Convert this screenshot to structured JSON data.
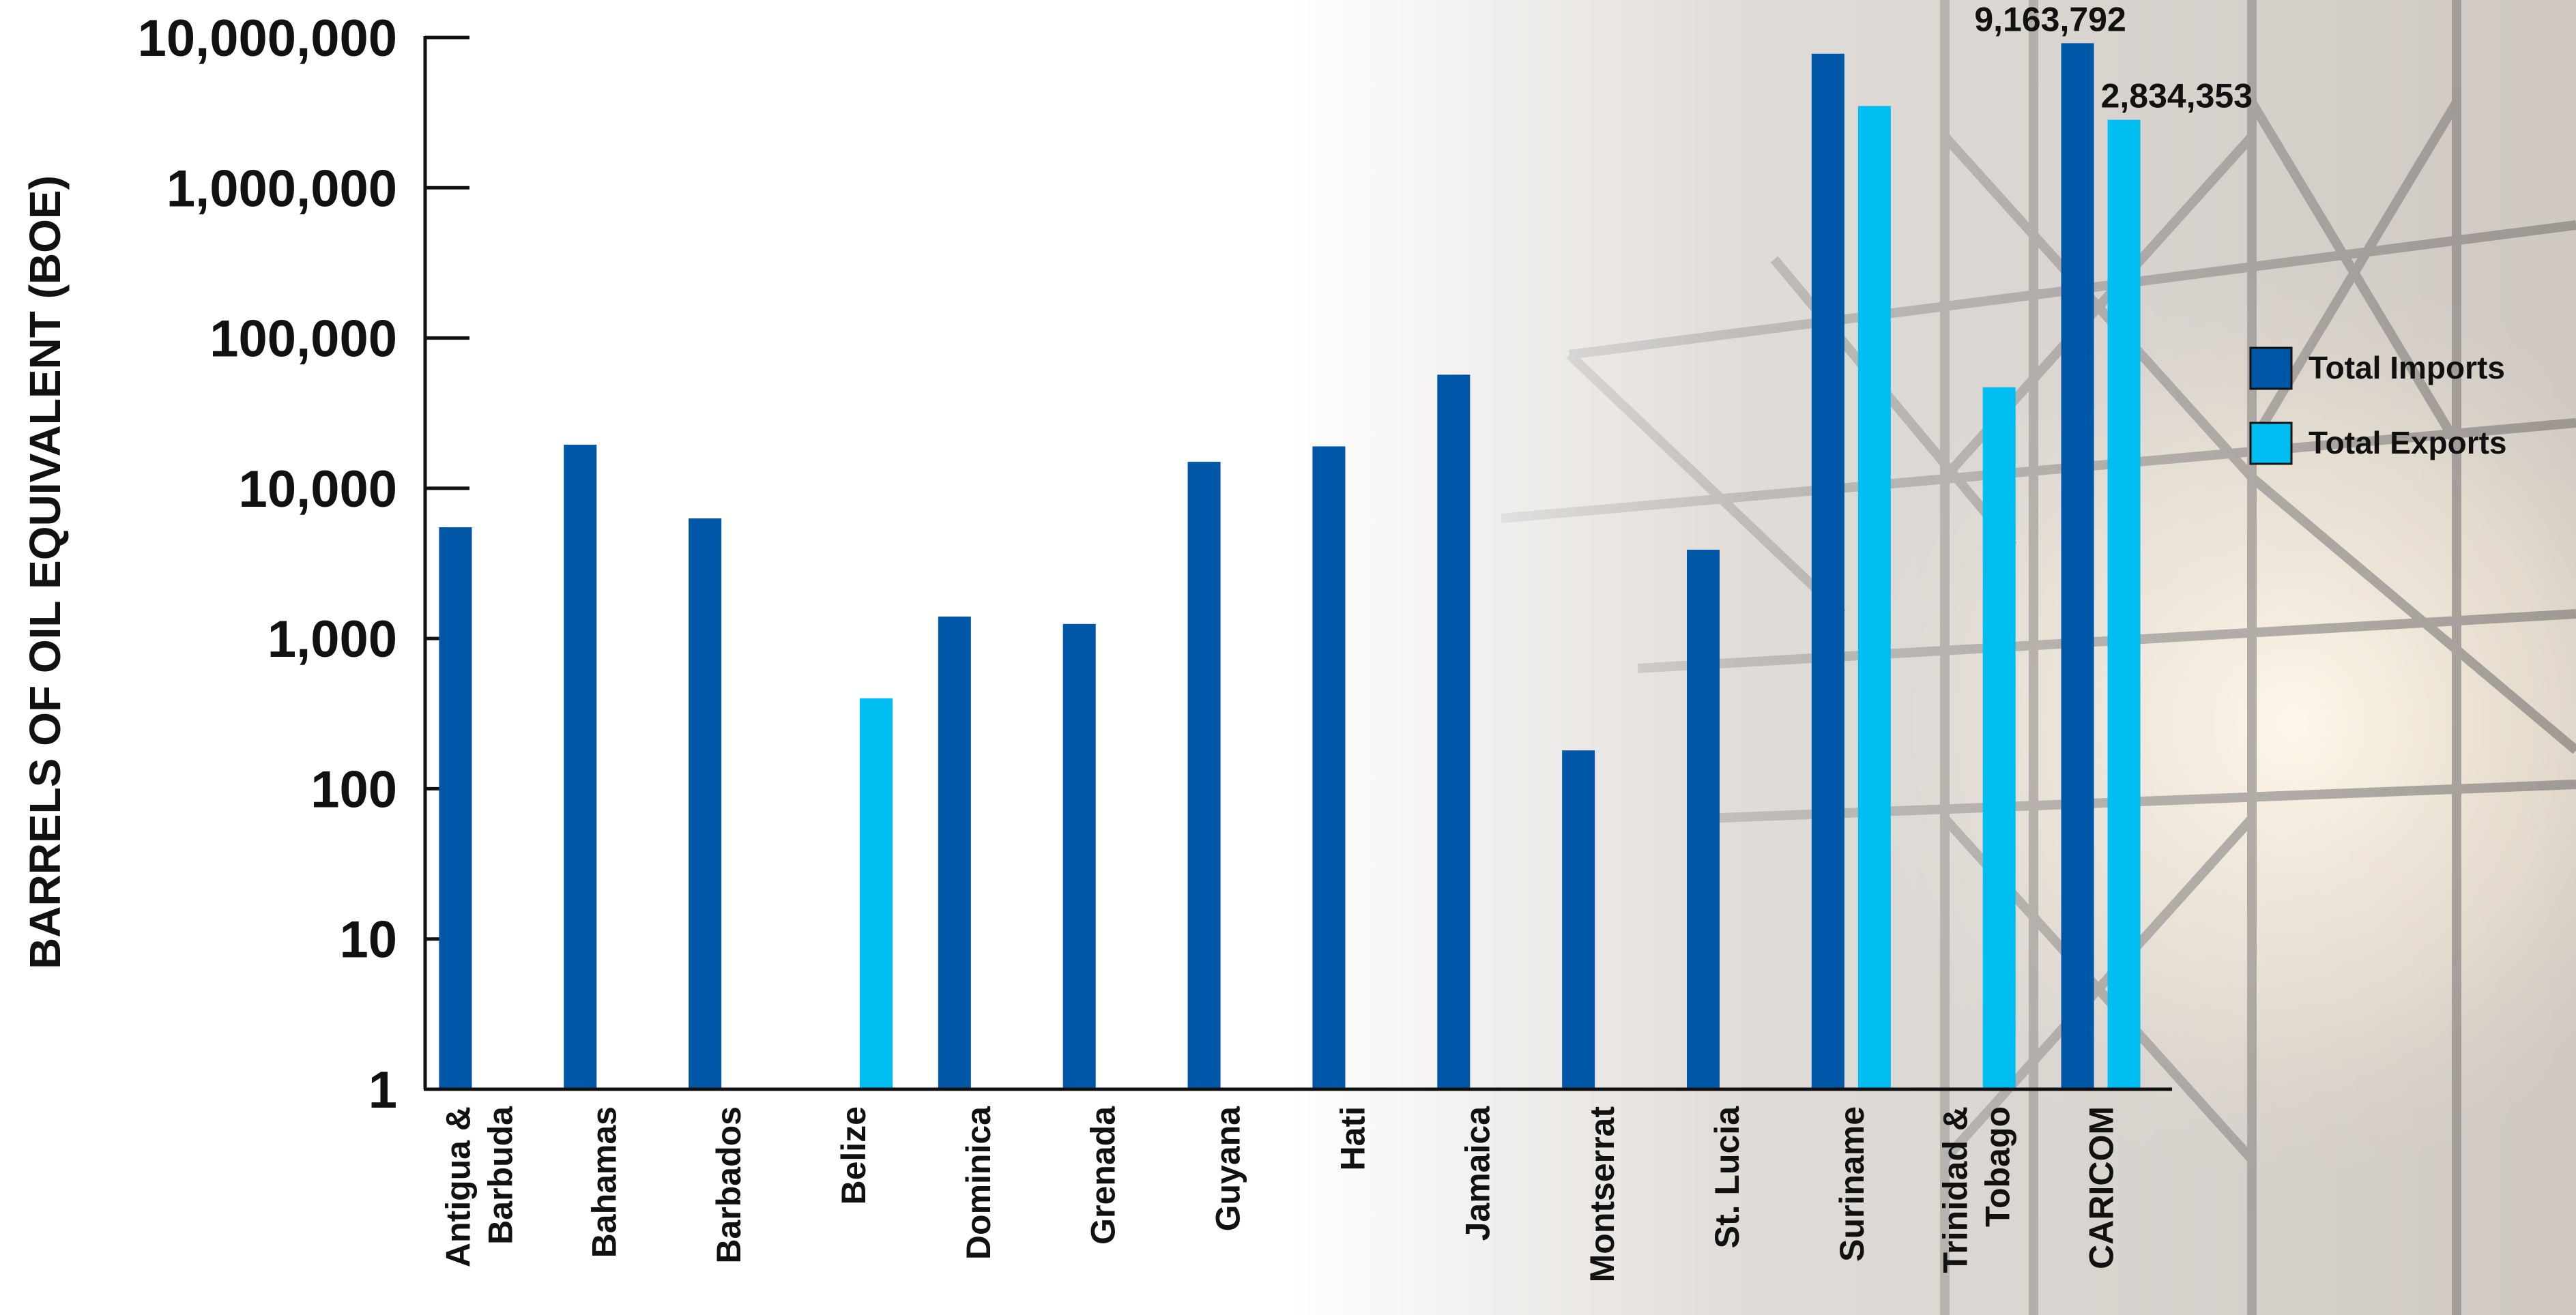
{
  "chart_data": {
    "type": "bar",
    "scale": "log",
    "ylabel": "BARRELS OF OIL EQUIVALENT (BOE)",
    "xlabel": "",
    "ylim": [
      1,
      10000000
    ],
    "yticks": [
      1,
      10,
      100,
      1000,
      10000,
      100000,
      1000000,
      10000000
    ],
    "ytick_labels": [
      "1",
      "10",
      "100",
      "1,000",
      "10,000",
      "100,000",
      "1,000,000",
      "10,000,000"
    ],
    "categories": [
      [
        "Antigua &",
        "Barbuda"
      ],
      [
        "Bahamas"
      ],
      [
        "Barbados"
      ],
      [
        "Belize"
      ],
      [
        "Dominica"
      ],
      [
        "Grenada"
      ],
      [
        "Guyana"
      ],
      [
        "Hati"
      ],
      [
        "Jamaica"
      ],
      [
        "Montserrat"
      ],
      [
        "St. Lucia"
      ],
      [
        "Suriname"
      ],
      [
        "Trinidad &",
        "Tobago"
      ],
      [
        "CARICOM"
      ]
    ],
    "series": [
      {
        "name": "Total Imports",
        "color": "#0057A8",
        "values": [
          5500,
          19500,
          6300,
          null,
          1400,
          1250,
          15000,
          19000,
          57000,
          180,
          3900,
          7800000,
          null,
          9163792
        ]
      },
      {
        "name": "Total Exports",
        "color": "#00BDF2",
        "values": [
          null,
          null,
          null,
          400,
          null,
          null,
          null,
          null,
          null,
          null,
          null,
          3500000,
          47000,
          2834353
        ]
      }
    ],
    "data_labels": [
      {
        "series": 0,
        "index": 13,
        "text": "9,163,792"
      },
      {
        "series": 1,
        "index": 13,
        "text": "2,834,353"
      }
    ],
    "legend": {
      "position": "right"
    },
    "grid": false,
    "background": "photo of oil rig structure (industrial), faded"
  }
}
